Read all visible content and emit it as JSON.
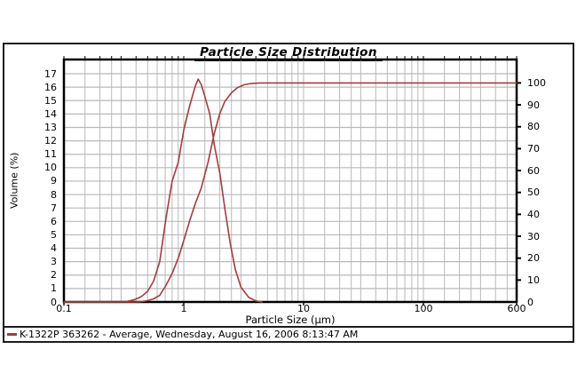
{
  "chart": {
    "title": "Particle Size Distribution"
  },
  "legend": {
    "text": "K-1322P 363262 - Average, Wednesday, August 16, 2006 8:13:47 AM"
  },
  "colors": {
    "curve": "#a63b3b",
    "grid": "#b9b9b9",
    "axis": "#000000",
    "background": "#ffffff"
  },
  "chart_data": {
    "type": "line",
    "title": "Particle Size Distribution",
    "x": {
      "label": "Particle Size (µm)",
      "scale": "log",
      "min": 0.1,
      "max": 600,
      "tick_values": [
        0.1,
        1,
        10,
        100,
        600
      ],
      "tick_labels": [
        "0.1",
        "1",
        "10",
        "100",
        "600"
      ],
      "grid_multipliers": [
        1,
        1.5,
        2,
        2.5,
        3,
        4,
        5,
        6,
        7,
        8,
        9
      ]
    },
    "y_left": {
      "label": "Volume (%)",
      "ticks": [
        0,
        1,
        2,
        3,
        4,
        5,
        6,
        7,
        8,
        9,
        10,
        11,
        12,
        13,
        14,
        15,
        16,
        17
      ],
      "axis_max": 18.06,
      "grid_step": 1
    },
    "y_right": {
      "label": "",
      "ticks": [
        0,
        10,
        20,
        30,
        40,
        50,
        60,
        70,
        80,
        90,
        100
      ],
      "axis_max": 110.7
    },
    "grid_on": true,
    "legend_position": "bottom",
    "series": [
      {
        "id": "volume-frequency",
        "legend_label": "K-1322P 363262 - Average, Wednesday, August 16, 2006 8:13:47 AM",
        "axis": "left",
        "points": [
          [
            0.1,
            0
          ],
          [
            0.3,
            0
          ],
          [
            0.34,
            0.05
          ],
          [
            0.38,
            0.15
          ],
          [
            0.42,
            0.3
          ],
          [
            0.45,
            0.45
          ],
          [
            0.5,
            0.8
          ],
          [
            0.56,
            1.55
          ],
          [
            0.63,
            3.0
          ],
          [
            0.71,
            6.2
          ],
          [
            0.8,
            9.0
          ],
          [
            0.9,
            10.4
          ],
          [
            1.0,
            12.8
          ],
          [
            1.12,
            14.6
          ],
          [
            1.25,
            16.1
          ],
          [
            1.32,
            16.6
          ],
          [
            1.4,
            16.2
          ],
          [
            1.5,
            15.3
          ],
          [
            1.65,
            14.0
          ],
          [
            1.8,
            11.7
          ],
          [
            2.0,
            9.6
          ],
          [
            2.2,
            7.0
          ],
          [
            2.45,
            4.3
          ],
          [
            2.7,
            2.4
          ],
          [
            3.0,
            1.1
          ],
          [
            3.5,
            0.33
          ],
          [
            4.0,
            0.08
          ],
          [
            4.5,
            0
          ]
        ]
      },
      {
        "id": "cumulative-undersize",
        "legend_label": "",
        "axis": "right",
        "points": [
          [
            0.1,
            0
          ],
          [
            0.38,
            0
          ],
          [
            0.42,
            0.1
          ],
          [
            0.45,
            0.25
          ],
          [
            0.5,
            0.6
          ],
          [
            0.56,
            1.4
          ],
          [
            0.63,
            3.0
          ],
          [
            0.71,
            7.5
          ],
          [
            0.8,
            13
          ],
          [
            0.9,
            20
          ],
          [
            1.0,
            28
          ],
          [
            1.12,
            37
          ],
          [
            1.25,
            45
          ],
          [
            1.4,
            52
          ],
          [
            1.6,
            64
          ],
          [
            1.8,
            77
          ],
          [
            2.0,
            86
          ],
          [
            2.2,
            91.5
          ],
          [
            2.5,
            95.5
          ],
          [
            2.8,
            97.8
          ],
          [
            3.2,
            99.2
          ],
          [
            3.6,
            99.7
          ],
          [
            4.3,
            100
          ],
          [
            600,
            100
          ]
        ]
      }
    ]
  }
}
